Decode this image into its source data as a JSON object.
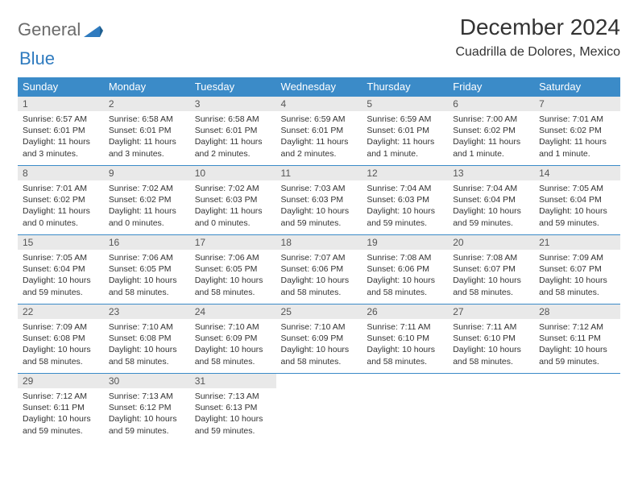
{
  "brand": {
    "part1": "General",
    "part2": "Blue"
  },
  "title": "December 2024",
  "location": "Cuadrilla de Dolores, Mexico",
  "colors": {
    "header_bg": "#3b8bc8",
    "header_text": "#ffffff",
    "daynum_bg": "#e9e9e9",
    "border": "#3b8bc8",
    "text": "#333333",
    "logo_gray": "#6b6b6b",
    "logo_blue": "#2f7bbf"
  },
  "weekdays": [
    "Sunday",
    "Monday",
    "Tuesday",
    "Wednesday",
    "Thursday",
    "Friday",
    "Saturday"
  ],
  "labels": {
    "sunrise": "Sunrise:",
    "sunset": "Sunset:",
    "daylight": "Daylight:"
  },
  "weeks": [
    [
      {
        "n": "1",
        "sr": "6:57 AM",
        "ss": "6:01 PM",
        "dl": "11 hours and 3 minutes."
      },
      {
        "n": "2",
        "sr": "6:58 AM",
        "ss": "6:01 PM",
        "dl": "11 hours and 3 minutes."
      },
      {
        "n": "3",
        "sr": "6:58 AM",
        "ss": "6:01 PM",
        "dl": "11 hours and 2 minutes."
      },
      {
        "n": "4",
        "sr": "6:59 AM",
        "ss": "6:01 PM",
        "dl": "11 hours and 2 minutes."
      },
      {
        "n": "5",
        "sr": "6:59 AM",
        "ss": "6:01 PM",
        "dl": "11 hours and 1 minute."
      },
      {
        "n": "6",
        "sr": "7:00 AM",
        "ss": "6:02 PM",
        "dl": "11 hours and 1 minute."
      },
      {
        "n": "7",
        "sr": "7:01 AM",
        "ss": "6:02 PM",
        "dl": "11 hours and 1 minute."
      }
    ],
    [
      {
        "n": "8",
        "sr": "7:01 AM",
        "ss": "6:02 PM",
        "dl": "11 hours and 0 minutes."
      },
      {
        "n": "9",
        "sr": "7:02 AM",
        "ss": "6:02 PM",
        "dl": "11 hours and 0 minutes."
      },
      {
        "n": "10",
        "sr": "7:02 AM",
        "ss": "6:03 PM",
        "dl": "11 hours and 0 minutes."
      },
      {
        "n": "11",
        "sr": "7:03 AM",
        "ss": "6:03 PM",
        "dl": "10 hours and 59 minutes."
      },
      {
        "n": "12",
        "sr": "7:04 AM",
        "ss": "6:03 PM",
        "dl": "10 hours and 59 minutes."
      },
      {
        "n": "13",
        "sr": "7:04 AM",
        "ss": "6:04 PM",
        "dl": "10 hours and 59 minutes."
      },
      {
        "n": "14",
        "sr": "7:05 AM",
        "ss": "6:04 PM",
        "dl": "10 hours and 59 minutes."
      }
    ],
    [
      {
        "n": "15",
        "sr": "7:05 AM",
        "ss": "6:04 PM",
        "dl": "10 hours and 59 minutes."
      },
      {
        "n": "16",
        "sr": "7:06 AM",
        "ss": "6:05 PM",
        "dl": "10 hours and 58 minutes."
      },
      {
        "n": "17",
        "sr": "7:06 AM",
        "ss": "6:05 PM",
        "dl": "10 hours and 58 minutes."
      },
      {
        "n": "18",
        "sr": "7:07 AM",
        "ss": "6:06 PM",
        "dl": "10 hours and 58 minutes."
      },
      {
        "n": "19",
        "sr": "7:08 AM",
        "ss": "6:06 PM",
        "dl": "10 hours and 58 minutes."
      },
      {
        "n": "20",
        "sr": "7:08 AM",
        "ss": "6:07 PM",
        "dl": "10 hours and 58 minutes."
      },
      {
        "n": "21",
        "sr": "7:09 AM",
        "ss": "6:07 PM",
        "dl": "10 hours and 58 minutes."
      }
    ],
    [
      {
        "n": "22",
        "sr": "7:09 AM",
        "ss": "6:08 PM",
        "dl": "10 hours and 58 minutes."
      },
      {
        "n": "23",
        "sr": "7:10 AM",
        "ss": "6:08 PM",
        "dl": "10 hours and 58 minutes."
      },
      {
        "n": "24",
        "sr": "7:10 AM",
        "ss": "6:09 PM",
        "dl": "10 hours and 58 minutes."
      },
      {
        "n": "25",
        "sr": "7:10 AM",
        "ss": "6:09 PM",
        "dl": "10 hours and 58 minutes."
      },
      {
        "n": "26",
        "sr": "7:11 AM",
        "ss": "6:10 PM",
        "dl": "10 hours and 58 minutes."
      },
      {
        "n": "27",
        "sr": "7:11 AM",
        "ss": "6:10 PM",
        "dl": "10 hours and 58 minutes."
      },
      {
        "n": "28",
        "sr": "7:12 AM",
        "ss": "6:11 PM",
        "dl": "10 hours and 59 minutes."
      }
    ],
    [
      {
        "n": "29",
        "sr": "7:12 AM",
        "ss": "6:11 PM",
        "dl": "10 hours and 59 minutes."
      },
      {
        "n": "30",
        "sr": "7:13 AM",
        "ss": "6:12 PM",
        "dl": "10 hours and 59 minutes."
      },
      {
        "n": "31",
        "sr": "7:13 AM",
        "ss": "6:13 PM",
        "dl": "10 hours and 59 minutes."
      },
      null,
      null,
      null,
      null
    ]
  ]
}
